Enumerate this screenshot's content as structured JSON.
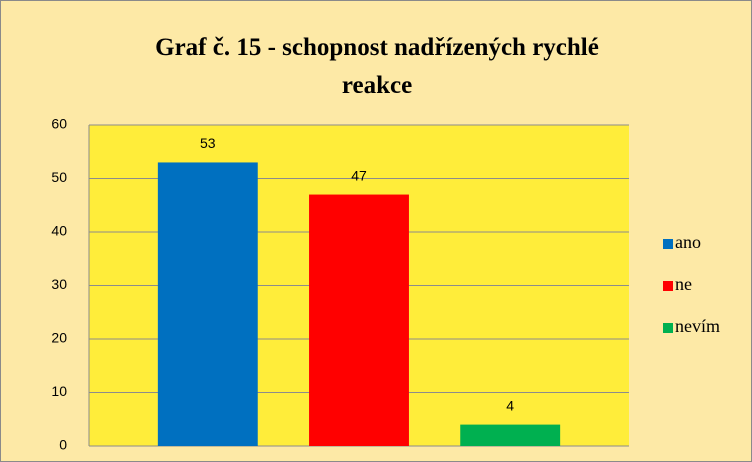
{
  "chart_data": {
    "type": "bar",
    "title": "Graf č. 15 - schopnost nadřízených rychlé reakce",
    "categories": [
      null
    ],
    "series": [
      {
        "name": "ano",
        "color": "#0070c0",
        "values": [
          53
        ]
      },
      {
        "name": "ne",
        "color": "#ff0000",
        "values": [
          47
        ]
      },
      {
        "name": "nevím",
        "color": "#00b050",
        "values": [
          4
        ]
      }
    ],
    "ylim": [
      0,
      60
    ],
    "yticks": [
      0,
      10,
      20,
      30,
      40,
      50,
      60
    ],
    "grid": true,
    "legend": "right",
    "data_labels": true
  }
}
